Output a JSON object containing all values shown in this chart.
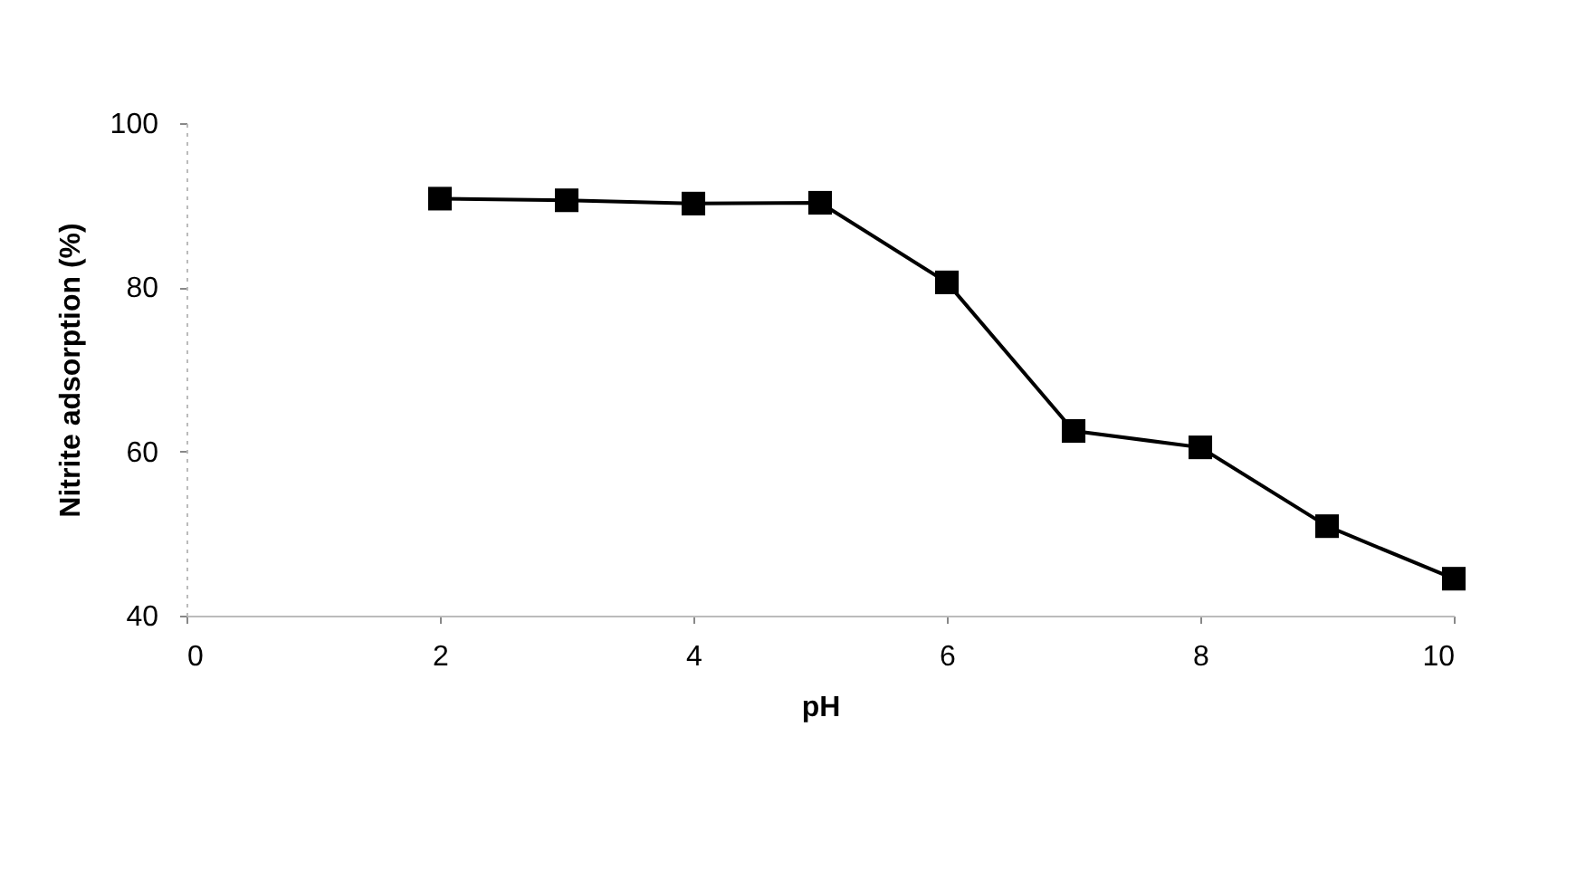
{
  "chart_data": {
    "type": "line",
    "xlabel": "pH",
    "ylabel": "Nitrite adsorption (%)",
    "x": [
      2,
      3,
      4,
      5,
      6,
      7,
      8,
      9,
      10
    ],
    "series": [
      {
        "color": "#000000",
        "values": [
          90.8,
          90.6,
          90.2,
          90.3,
          80.6,
          62.5,
          60.5,
          50.9,
          44.5
        ]
      }
    ],
    "xlim": [
      0,
      10
    ],
    "xticks": [
      0,
      2,
      4,
      6,
      8,
      10
    ],
    "ylim": [
      40,
      100
    ],
    "yticks": [
      40,
      60,
      80,
      100
    ],
    "marker": "square",
    "line_style": "solid"
  }
}
